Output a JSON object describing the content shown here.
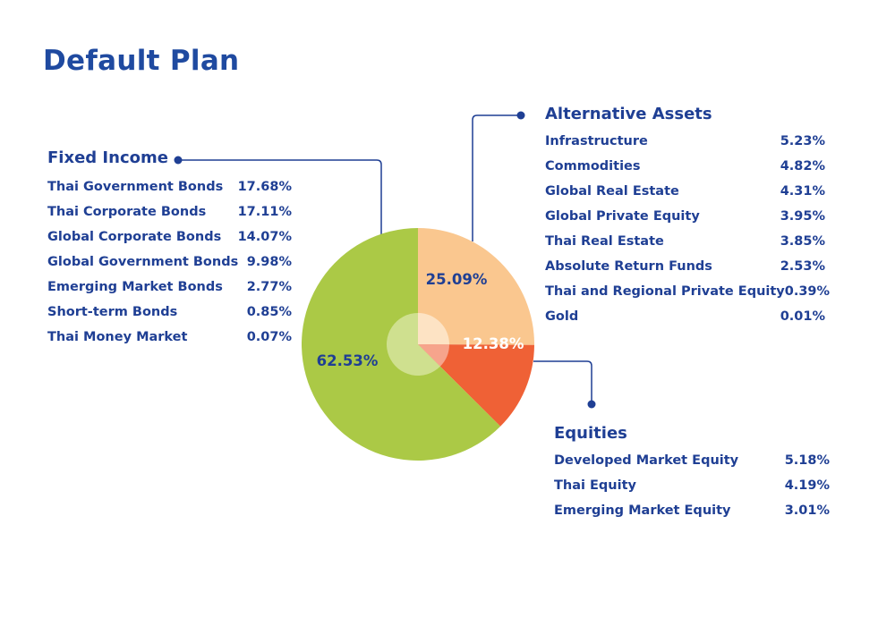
{
  "page": {
    "title": "Default Plan"
  },
  "colors": {
    "fixed_income": "#abc946",
    "alternative_assets": "#fac78f",
    "equities": "#ef6136",
    "center_fixed": "#cfe08f",
    "center_alt": "#fde3c4",
    "center_eq": "#f6a48c",
    "connector": "#1f3f94",
    "text": "#1f3f94"
  },
  "chart_data": {
    "type": "pie",
    "title": "Default Plan",
    "slices": [
      {
        "name": "Alternative Assets",
        "value": 25.09,
        "label": "25.09%"
      },
      {
        "name": "Equities",
        "value": 12.38,
        "label": "12.38%"
      },
      {
        "name": "Fixed Income",
        "value": 62.53,
        "label": "62.53%"
      }
    ],
    "groups": [
      {
        "name": "Fixed Income",
        "items": [
          {
            "label": "Thai Government Bonds",
            "value": "17.68%"
          },
          {
            "label": "Thai Corporate Bonds",
            "value": "17.11%"
          },
          {
            "label": "Global Corporate Bonds",
            "value": "14.07%"
          },
          {
            "label": "Global Government Bonds",
            "value": "9.98%"
          },
          {
            "label": "Emerging Market Bonds",
            "value": "2.77%"
          },
          {
            "label": "Short-term Bonds",
            "value": "0.85%"
          },
          {
            "label": "Thai Money Market",
            "value": "0.07%"
          }
        ]
      },
      {
        "name": "Alternative Assets",
        "items": [
          {
            "label": "Infrastructure",
            "value": "5.23%"
          },
          {
            "label": "Commodities",
            "value": "4.82%"
          },
          {
            "label": "Global Real Estate",
            "value": "4.31%"
          },
          {
            "label": "Global Private Equity",
            "value": "3.95%"
          },
          {
            "label": "Thai Real Estate",
            "value": "3.85%"
          },
          {
            "label": "Absolute Return Funds",
            "value": "2.53%"
          },
          {
            "label": "Thai and Regional Private Equity",
            "value": "0.39%"
          },
          {
            "label": "Gold",
            "value": "0.01%"
          }
        ]
      },
      {
        "name": "Equities",
        "items": [
          {
            "label": "Developed Market Equity",
            "value": "5.18%"
          },
          {
            "label": "Thai Equity",
            "value": "4.19%"
          },
          {
            "label": "Emerging Market Equity",
            "value": "3.01%"
          }
        ]
      }
    ]
  }
}
